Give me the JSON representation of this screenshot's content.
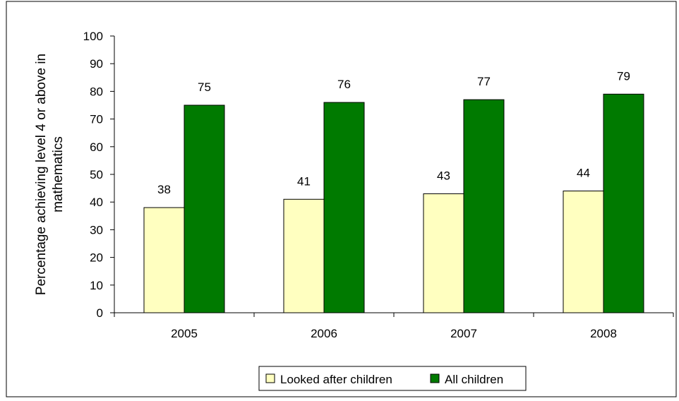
{
  "chart_data": {
    "type": "bar",
    "title": "",
    "xlabel": "",
    "ylabel_lines": [
      "Percentage achieving level 4 or above in",
      "mathematics"
    ],
    "categories": [
      "2005",
      "2006",
      "2007",
      "2008"
    ],
    "series": [
      {
        "name": "Looked after children",
        "values": [
          38,
          41,
          43,
          44
        ],
        "color": "#ffffc0"
      },
      {
        "name": "All children",
        "values": [
          75,
          76,
          77,
          79
        ],
        "color": "#007a00"
      }
    ],
    "ylim": [
      0,
      100
    ],
    "yticks": [
      0,
      10,
      20,
      30,
      40,
      50,
      60,
      70,
      80,
      90,
      100
    ],
    "grid": false,
    "data_labels": true,
    "legend_position": "bottom"
  }
}
